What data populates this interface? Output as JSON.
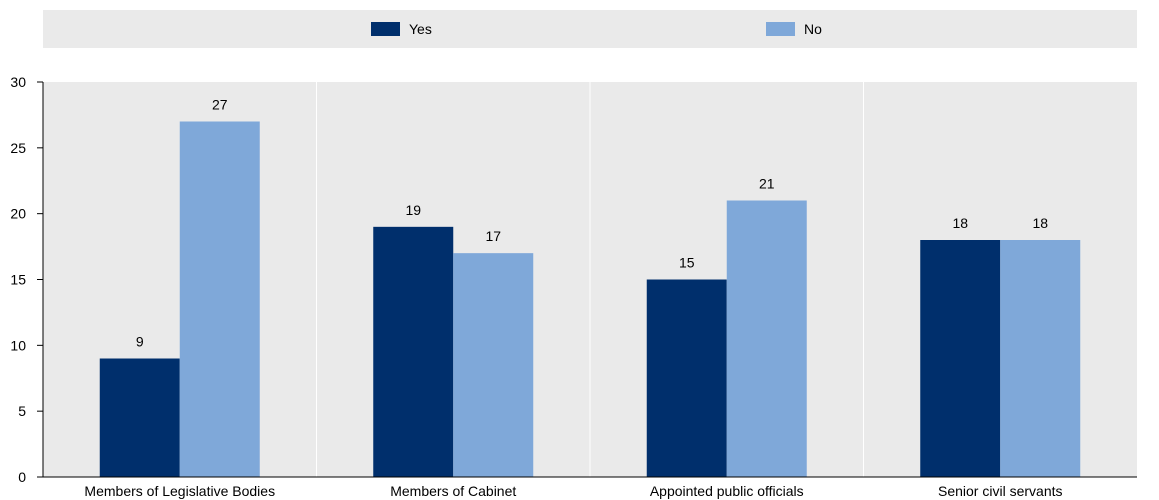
{
  "chart_data": {
    "type": "bar",
    "categories": [
      "Members of Legislative Bodies",
      "Members of Cabinet",
      "Appointed public officials",
      "Senior civil servants"
    ],
    "series": [
      {
        "name": "Yes",
        "values": [
          9,
          19,
          15,
          18
        ],
        "color": "#002f6c"
      },
      {
        "name": "No",
        "values": [
          27,
          17,
          21,
          18
        ],
        "color": "#7fa8d9"
      }
    ],
    "yticks": [
      0,
      5,
      10,
      15,
      20,
      25,
      30
    ],
    "ylim": [
      0,
      30
    ],
    "legend_position": "top",
    "grid": "vertical-category-separators",
    "plot_background": "#eaeaea",
    "legend_background": "#eaeaea"
  }
}
